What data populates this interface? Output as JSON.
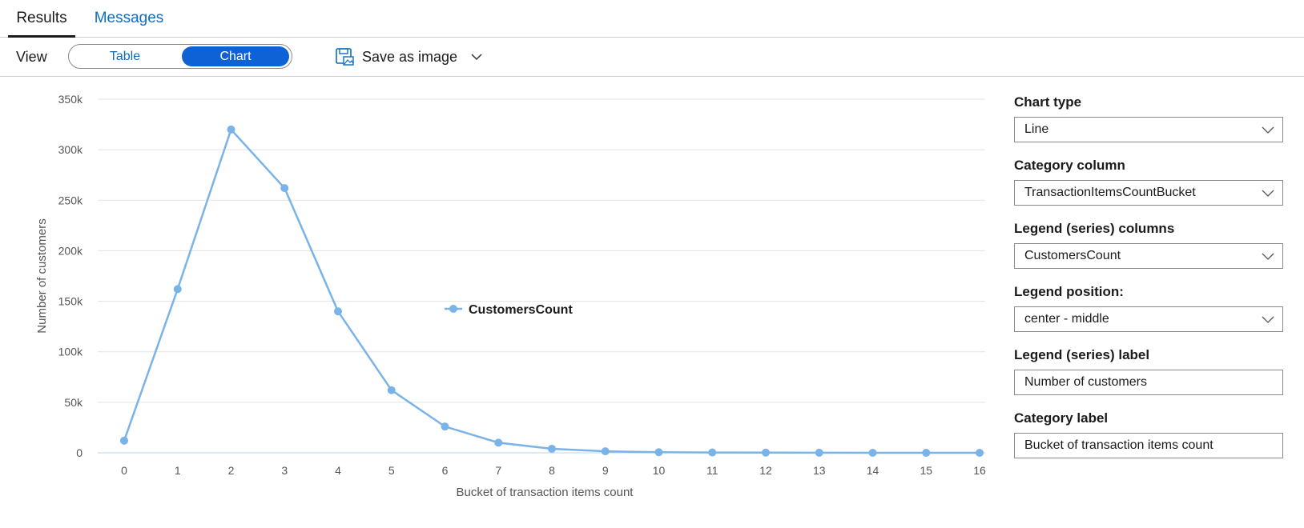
{
  "tabs": [
    {
      "label": "Results",
      "active": true
    },
    {
      "label": "Messages",
      "active": false
    }
  ],
  "toolbar": {
    "view_label": "View",
    "toggle_options": [
      "Table",
      "Chart"
    ],
    "selected_view": "Chart",
    "save_label": "Save as image"
  },
  "colors": {
    "accent": "#0f62d6",
    "link": "#0f6cbd",
    "series_line": "#7ab3e8",
    "gridline": "#e3e3e3"
  },
  "chart_data": {
    "type": "line",
    "x": [
      0,
      1,
      2,
      3,
      4,
      5,
      6,
      7,
      8,
      9,
      10,
      11,
      12,
      13,
      14,
      15,
      16
    ],
    "series": [
      {
        "name": "CustomersCount",
        "values": [
          12000,
          162000,
          320000,
          262000,
          140000,
          62000,
          26000,
          10000,
          4000,
          1500,
          600,
          300,
          150,
          80,
          40,
          20,
          10
        ]
      }
    ],
    "y_ticks": [
      "0",
      "50k",
      "100k",
      "150k",
      "200k",
      "250k",
      "300k",
      "350k"
    ],
    "ylim": [
      0,
      350000
    ],
    "xlabel": "Bucket of transaction items count",
    "ylabel": "Number of customers",
    "legend": "center - middle",
    "grid": true
  },
  "settings": {
    "chart_type": {
      "label": "Chart type",
      "value": "Line"
    },
    "category_column": {
      "label": "Category column",
      "value": "TransactionItemsCountBucket"
    },
    "legend_columns": {
      "label": "Legend (series) columns",
      "value": "CustomersCount"
    },
    "legend_position": {
      "label": "Legend position:",
      "value": "center - middle"
    },
    "legend_label": {
      "label": "Legend (series) label",
      "value": "Number of customers"
    },
    "category_label": {
      "label": "Category label",
      "value": "Bucket of transaction items count"
    }
  }
}
